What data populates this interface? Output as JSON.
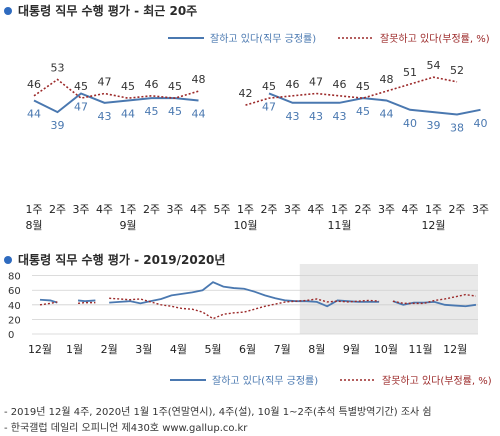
{
  "chart_data": [
    {
      "type": "line",
      "title": "대통령 직무 수행 평가 - 최근 20주",
      "categories": [
        "1주",
        "2주",
        "3주",
        "4주",
        "1주",
        "2주",
        "3주",
        "4주",
        "5주",
        "1주",
        "2주",
        "3주",
        "4주",
        "1주",
        "2주",
        "3주",
        "4주",
        "1주",
        "2주",
        "3주"
      ],
      "month_labels": [
        {
          "label": "8월",
          "index": 0
        },
        {
          "label": "9월",
          "index": 4
        },
        {
          "label": "10월",
          "index": 9
        },
        {
          "label": "11월",
          "index": 13
        },
        {
          "label": "12월",
          "index": 17
        }
      ],
      "series": [
        {
          "name": "잘하고 있다(직무 긍정률)",
          "color": "#4a78b0",
          "style": "solid",
          "values": [
            44,
            39,
            47,
            43,
            44,
            45,
            45,
            44,
            null,
            null,
            47,
            43,
            43,
            43,
            45,
            44,
            40,
            39,
            38,
            40
          ]
        },
        {
          "name": "잘못하고 있다(부정률, %)",
          "color": "#9c2a2a",
          "style": "dotted",
          "values": [
            46,
            53,
            45,
            47,
            45,
            46,
            45,
            48,
            null,
            42,
            45,
            46,
            47,
            46,
            45,
            48,
            51,
            54,
            52,
            null
          ]
        }
      ],
      "ylim": [
        0,
        100
      ],
      "grid": false,
      "legend": "top-right"
    },
    {
      "type": "line",
      "title": "대통령 직무 수행 평가 - 2019/2020년",
      "x_tick_labels": [
        "12월",
        "1월",
        "2월",
        "3월",
        "4월",
        "5월",
        "6월",
        "7월",
        "8월",
        "9월",
        "10월",
        "11월",
        "12월"
      ],
      "y_ticks": [
        0,
        20,
        40,
        60,
        80
      ],
      "ylim": [
        0,
        85
      ],
      "shaded_periods": [
        {
          "from": "8월",
          "to": "12월"
        }
      ],
      "series": [
        {
          "name": "잘하고 있다(직무 긍정률)",
          "color": "#4a78b0",
          "style": "solid",
          "segments": [
            [
              [
                0,
                47
              ],
              [
                0.3,
                46
              ],
              [
                0.5,
                43
              ]
            ],
            [
              [
                1.1,
                46
              ],
              [
                1.3,
                45
              ],
              [
                1.6,
                46
              ]
            ],
            [
              [
                2.0,
                43
              ],
              [
                2.3,
                44
              ],
              [
                2.6,
                45
              ],
              [
                2.9,
                42
              ],
              [
                3.2,
                45
              ],
              [
                3.5,
                48
              ],
              [
                3.8,
                53
              ],
              [
                4.1,
                55
              ],
              [
                4.4,
                57
              ],
              [
                4.7,
                60
              ],
              [
                5.0,
                71
              ],
              [
                5.3,
                65
              ],
              [
                5.6,
                63
              ],
              [
                5.9,
                62
              ],
              [
                6.2,
                58
              ],
              [
                6.5,
                53
              ],
              [
                6.8,
                49
              ],
              [
                7.1,
                46
              ],
              [
                7.4,
                45
              ],
              [
                7.7,
                45
              ],
              [
                8.0,
                44
              ],
              [
                8.3,
                38
              ],
              [
                8.6,
                46
              ],
              [
                8.9,
                45
              ],
              [
                9.2,
                44
              ],
              [
                9.5,
                44
              ],
              [
                9.8,
                44
              ]
            ],
            [
              [
                10.2,
                45
              ],
              [
                10.5,
                40
              ],
              [
                10.8,
                43
              ],
              [
                11.1,
                43
              ],
              [
                11.4,
                44
              ],
              [
                11.7,
                40
              ],
              [
                12.0,
                39
              ],
              [
                12.3,
                38
              ],
              [
                12.6,
                40
              ]
            ]
          ]
        },
        {
          "name": "잘못하고 있다(부정률, %)",
          "color": "#9c2a2a",
          "style": "dotted",
          "segments": [
            [
              [
                0,
                40
              ],
              [
                0.3,
                42
              ],
              [
                0.5,
                44
              ]
            ],
            [
              [
                1.1,
                42
              ],
              [
                1.3,
                43
              ],
              [
                1.6,
                43
              ]
            ],
            [
              [
                2.0,
                49
              ],
              [
                2.3,
                48
              ],
              [
                2.6,
                47
              ],
              [
                2.9,
                48
              ],
              [
                3.2,
                44
              ],
              [
                3.5,
                40
              ],
              [
                3.8,
                38
              ],
              [
                4.1,
                35
              ],
              [
                4.4,
                34
              ],
              [
                4.7,
                30
              ],
              [
                5.0,
                21
              ],
              [
                5.3,
                27
              ],
              [
                5.6,
                29
              ],
              [
                5.9,
                30
              ],
              [
                6.2,
                34
              ],
              [
                6.5,
                38
              ],
              [
                6.8,
                41
              ],
              [
                7.1,
                44
              ],
              [
                7.4,
                45
              ],
              [
                7.7,
                46
              ],
              [
                8.0,
                48
              ],
              [
                8.3,
                44
              ],
              [
                8.6,
                45
              ],
              [
                8.9,
                44
              ],
              [
                9.2,
                45
              ],
              [
                9.5,
                46
              ],
              [
                9.8,
                45
              ]
            ],
            [
              [
                10.2,
                45
              ],
              [
                10.5,
                42
              ],
              [
                10.8,
                42
              ],
              [
                11.1,
                42
              ],
              [
                11.4,
                46
              ],
              [
                11.7,
                48
              ],
              [
                12.0,
                51
              ],
              [
                12.3,
                54
              ],
              [
                12.6,
                52
              ]
            ]
          ]
        }
      ],
      "legend": "bottom"
    }
  ],
  "legend": {
    "positive_label": "잘하고 있다(직무 긍정률)",
    "negative_label": "잘못하고 있다(부정률, %)"
  },
  "footer": {
    "line1": "- 2019년 12월 4주, 2020년 1월 1주(연말연시), 4주(설), 10월 1~2주(추석 특별방역기간) 조사 쉼",
    "line2": "- 한국갤럽 데일리 오피니언 제430호 www.gallup.co.kr"
  },
  "colors": {
    "positive": "#4a78b0",
    "negative": "#9c2a2a",
    "bullet": "#2f6bbf",
    "positive_label_text": "#4a78b0",
    "negative_label_text": "#9c2a2a",
    "shade": "#e9e9e9"
  }
}
